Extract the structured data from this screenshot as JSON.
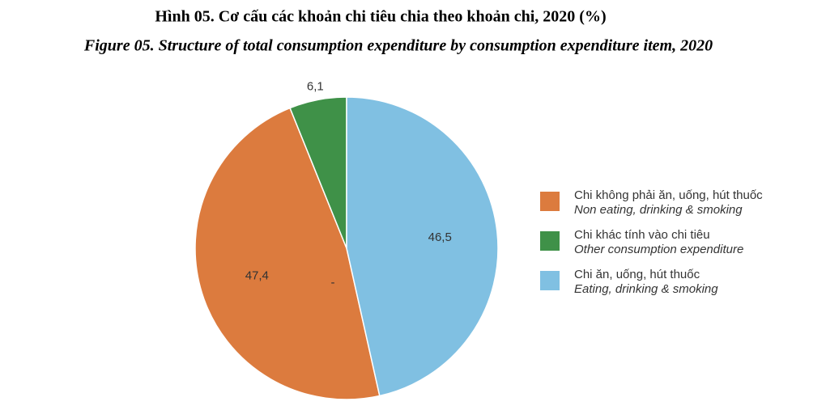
{
  "chart_data": {
    "type": "pie",
    "title": "Hình 05. Cơ cấu các khoản chi tiêu chia theo khoản chi, 2020 (%)",
    "subtitle": "Figure 05. Structure of total consumption expenditure by consumption expenditure item, 2020",
    "categories": [
      "Chi không phải ăn, uống, hút thuốc",
      "Chi khác tính vào chi tiêu",
      "Chi ăn, uống, hút thuốc"
    ],
    "categories_en": [
      "Non eating, drinking & smoking",
      "Other consumption expenditure",
      "Eating, drinking & smoking"
    ],
    "values": [
      47.4,
      6.1,
      46.5
    ],
    "value_labels": [
      "47,4",
      "6,1",
      "46,5"
    ],
    "colors": [
      "#dc7b3e",
      "#3f9148",
      "#80c0e2"
    ],
    "annotation": "-",
    "legend": "right"
  }
}
